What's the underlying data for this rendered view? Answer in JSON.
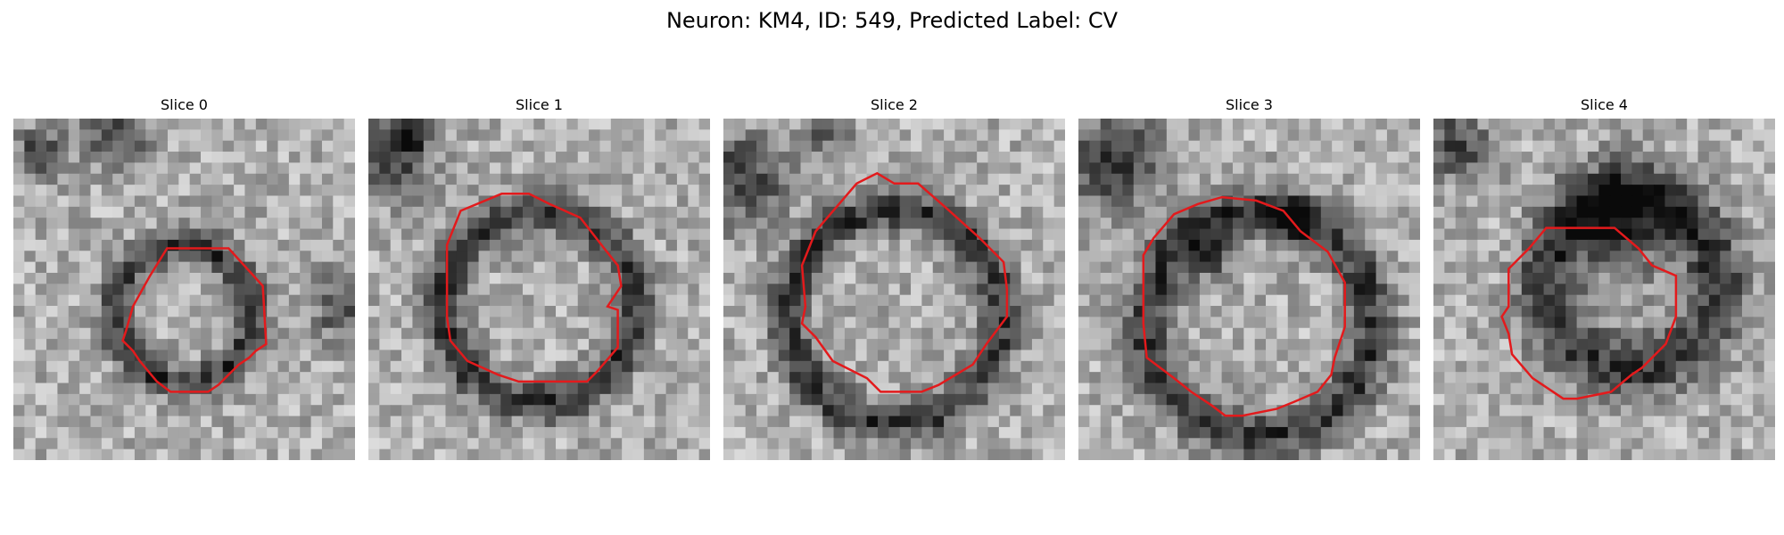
{
  "title": "Neuron: KM4, ID: 549, Predicted Label: CV",
  "colors": {
    "contour": "#e31a1c"
  },
  "panels": [
    {
      "title": "Slice 0"
    },
    {
      "title": "Slice 1"
    },
    {
      "title": "Slice 2"
    },
    {
      "title": "Slice 3"
    },
    {
      "title": "Slice 4"
    }
  ]
}
